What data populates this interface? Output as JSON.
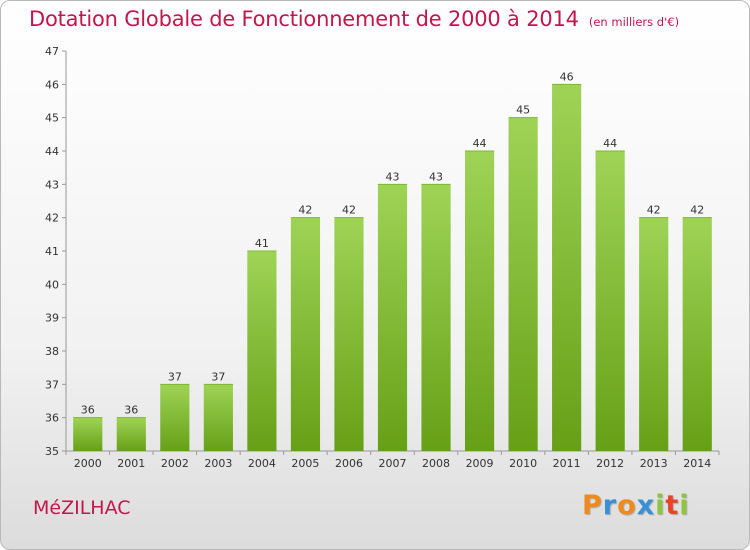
{
  "title": "Dotation Globale de Fonctionnement de 2000 à 2014",
  "subtitle": "(en milliers d'€)",
  "commune": "MéZILHAC",
  "logo": {
    "letters": [
      "P",
      "r",
      "o",
      "x",
      "i",
      "t",
      "i"
    ],
    "colors": [
      "#f08a1c",
      "#3a8fd6",
      "#f08a1c",
      "#3a8fd6",
      "#8cc63f",
      "#e8442a",
      "#8cc63f"
    ]
  },
  "colors": {
    "accent": "#c3164d",
    "bar_light": "#9fd356",
    "bar_dark": "#66a017"
  },
  "chart_data": {
    "type": "bar",
    "categories": [
      "2000",
      "2001",
      "2002",
      "2003",
      "2004",
      "2005",
      "2006",
      "2007",
      "2008",
      "2009",
      "2010",
      "2011",
      "2012",
      "2013",
      "2014"
    ],
    "values": [
      36,
      36,
      37,
      37,
      41,
      42,
      42,
      43,
      43,
      44,
      45,
      46,
      44,
      42,
      42
    ],
    "title": "Dotation Globale de Fonctionnement de 2000 à 2014",
    "subtitle": "(en milliers d'€)",
    "xlabel": "",
    "ylabel": "",
    "ylim": [
      35,
      47
    ],
    "yticks": [
      35,
      36,
      37,
      38,
      39,
      40,
      41,
      42,
      43,
      44,
      45,
      46,
      47
    ],
    "grid": false,
    "legend": "none"
  }
}
